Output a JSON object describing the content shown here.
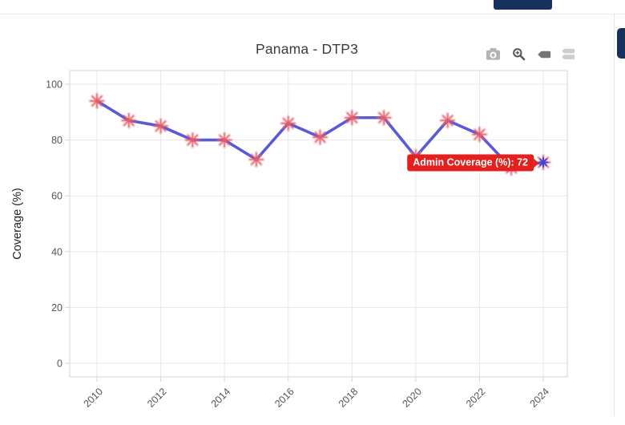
{
  "window": {
    "topbar": {},
    "buttons": {
      "navy_color": "#16325c"
    }
  },
  "chart": {
    "title": "Panama - DTP3",
    "y_axis": {
      "title": "Coverage (%)"
    },
    "tooltip": {
      "text": "Admin Coverage (%): 72",
      "bg": "#e3201d",
      "text_color": "#ffffff"
    },
    "modebar": [
      {
        "name": "download-plot-camera"
      },
      {
        "name": "zoom-in"
      },
      {
        "name": "hover-closest"
      },
      {
        "name": "hover-compare"
      }
    ],
    "colors": {
      "line": "#5a5ad8",
      "marker": "#e95c66",
      "marker_hover": "#3f43d6",
      "grid": "#e8e8e8",
      "axis_border": "#d4d4d4",
      "tick_text": "#555555",
      "title_text": "#3d3d3d",
      "icon_gray_light": "#b3b3b3",
      "icon_gray_dark": "#58585c",
      "icon_active": "#757575",
      "icon_inactive": "#cdcdcd"
    }
  },
  "chart_data": {
    "type": "line",
    "title": "Panama - DTP3",
    "xlabel": "",
    "ylabel": "Coverage (%)",
    "x": [
      2010,
      2011,
      2012,
      2013,
      2014,
      2015,
      2016,
      2017,
      2018,
      2019,
      2020,
      2021,
      2022,
      2023,
      2024
    ],
    "series": [
      {
        "name": "Admin Coverage (%)",
        "values": [
          94,
          87,
          85,
          80,
          80,
          73,
          86,
          81,
          88,
          88,
          74,
          87,
          82,
          70,
          72
        ]
      }
    ],
    "yticks": [
      0,
      20,
      40,
      60,
      80,
      100
    ],
    "xticks": [
      2010,
      2012,
      2014,
      2016,
      2018,
      2020,
      2022,
      2024
    ],
    "ylim": [
      0,
      100
    ],
    "grid": true,
    "legend": false,
    "marker_style": "asterisk",
    "hover": {
      "x": 2024,
      "y": 72,
      "label": "Admin Coverage (%): 72"
    }
  }
}
